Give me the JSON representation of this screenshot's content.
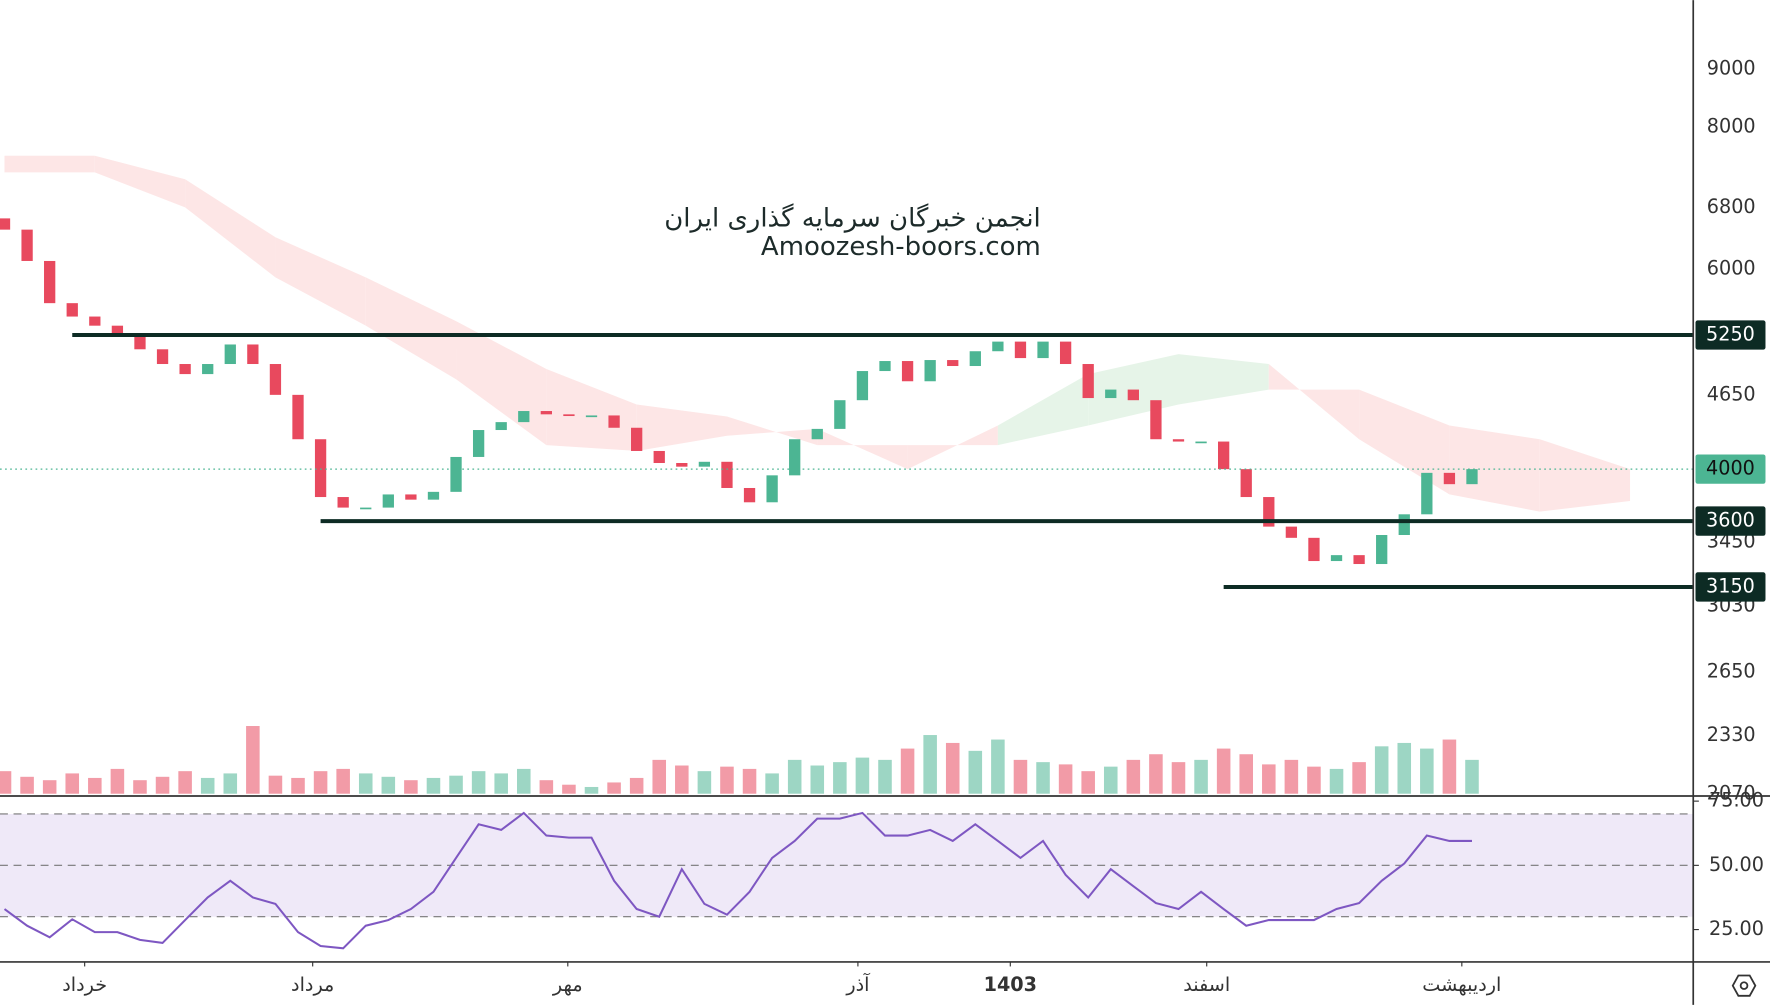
{
  "chart_data": {
    "type": "candlestick",
    "title": "انجمن خبرگان سرمایه گذاری ایران",
    "subtitle": "Amoozesh-boors.com",
    "log_scale": true,
    "ylim": [
      2062,
      10350
    ],
    "yticks": [
      9000,
      8000,
      6800,
      6000,
      4650,
      3450,
      3030,
      2650,
      2330,
      2070
    ],
    "xticks": [
      {
        "value": 3.55,
        "label": "خرداد"
      },
      {
        "value": 13.65,
        "label": "مرداد"
      },
      {
        "value": 24.95,
        "label": "مهر"
      },
      {
        "value": 37.8,
        "label": "آذر"
      },
      {
        "value": 44.55,
        "label": "1403"
      },
      {
        "value": 53.25,
        "label": "اسفند"
      },
      {
        "value": 64.55,
        "label": "اردیبهشت"
      }
    ],
    "up_color": "#4cb593",
    "down_color": "#e8495e",
    "open": [
      6650,
      6500,
      6100,
      5600,
      5450,
      5350,
      5250,
      5100,
      4950,
      4850,
      4950,
      5150,
      4950,
      4650,
      4250,
      3780,
      3700,
      3700,
      3800,
      3760,
      3820,
      4100,
      4330,
      4400,
      4500,
      4470,
      4460,
      4460,
      4350,
      4150,
      4050,
      4020,
      4060,
      3850,
      3740,
      3950,
      4250,
      4340,
      4600,
      4880,
      4980,
      4780,
      4990,
      4930,
      5080,
      5180,
      5010,
      5180,
      4950,
      4620,
      4700,
      4600,
      4250,
      4230,
      4230,
      4000,
      3780,
      3560,
      3480,
      3320,
      3360,
      3300,
      3500,
      3650,
      3970,
      3880
    ],
    "close": [
      6500,
      6100,
      5600,
      5450,
      5350,
      5250,
      5100,
      4950,
      4850,
      4950,
      5150,
      4950,
      4650,
      4250,
      3780,
      3700,
      3700,
      3800,
      3760,
      3820,
      4100,
      4330,
      4400,
      4500,
      4470,
      4460,
      4460,
      4350,
      4150,
      4050,
      4020,
      4060,
      3850,
      3740,
      3950,
      4250,
      4340,
      4600,
      4880,
      4980,
      4780,
      4990,
      4930,
      5080,
      5180,
      5010,
      5180,
      4950,
      4620,
      4700,
      4600,
      4250,
      4230,
      4230,
      4000,
      3780,
      3560,
      3480,
      3320,
      3360,
      3300,
      3500,
      3650,
      3970,
      3880,
      4000
    ],
    "volume": [
      20,
      15,
      12,
      18,
      14,
      22,
      12,
      15,
      20,
      14,
      18,
      60,
      16,
      14,
      20,
      22,
      18,
      15,
      12,
      14,
      16,
      20,
      18,
      22,
      12,
      8,
      6,
      10,
      14,
      30,
      25,
      20,
      24,
      22,
      18,
      30,
      25,
      28,
      32,
      30,
      40,
      52,
      45,
      38,
      48,
      30,
      28,
      26,
      20,
      24,
      30,
      35,
      28,
      30,
      40,
      35,
      26,
      30,
      24,
      22,
      28,
      42,
      45,
      40,
      48,
      30
    ],
    "cloud": {
      "index": [
        0,
        4,
        8,
        12,
        16,
        20,
        24,
        28,
        32,
        36,
        40,
        44,
        48,
        52,
        56,
        60,
        64,
        68,
        72
      ],
      "span_a": [
        7300,
        7300,
        6800,
        5900,
        5350,
        4800,
        4200,
        4150,
        4280,
        4340,
        4000,
        4370,
        4850,
        5050,
        4950,
        4250,
        3800,
        3670,
        3750
      ],
      "span_b": [
        7550,
        7550,
        7200,
        6400,
        5900,
        5400,
        4900,
        4560,
        4450,
        4200,
        4200,
        4200,
        4370,
        4560,
        4700,
        4700,
        4370,
        4250,
        4000
      ],
      "up_color": "#e6f4e8",
      "down_color": "#fde6e6"
    },
    "levels": [
      {
        "value": 5250,
        "start": 3
      },
      {
        "value": 3600,
        "start": 14
      },
      {
        "value": 3150,
        "start": 54
      }
    ],
    "level_color": "#0d2b24",
    "rsi": {
      "ylim": [
        12.4,
        77
      ],
      "bands": [
        30,
        70
      ],
      "yticks": [
        {
          "value": 75,
          "label": "75.00"
        },
        {
          "value": 50,
          "label": "50.00"
        },
        {
          "value": 25,
          "label": "25.00"
        }
      ],
      "color": "#7e57c2",
      "band_color": "#efe9f8",
      "values": [
        33,
        26.5,
        22,
        29,
        24,
        24,
        21,
        19.8,
        28.7,
        37.5,
        44,
        37.5,
        35,
        24,
        18.6,
        17.7,
        26.5,
        28.7,
        33,
        39.7,
        52.9,
        66,
        63.8,
        70.4,
        61.6,
        60.8,
        60.8,
        44,
        33,
        30,
        48.5,
        35,
        30.8,
        39.7,
        52.9,
        59.5,
        68.2,
        68.2,
        70.4,
        61.6,
        61.6,
        63.8,
        59.5,
        66,
        59.5,
        52.9,
        59.5,
        46.3,
        37.5,
        48.5,
        41.9,
        35.3,
        33,
        39.7,
        33,
        26.5,
        28.7,
        28.7,
        28.7,
        33,
        35.3,
        44,
        50.7,
        61.6,
        59.5,
        59.5
      ]
    }
  }
}
